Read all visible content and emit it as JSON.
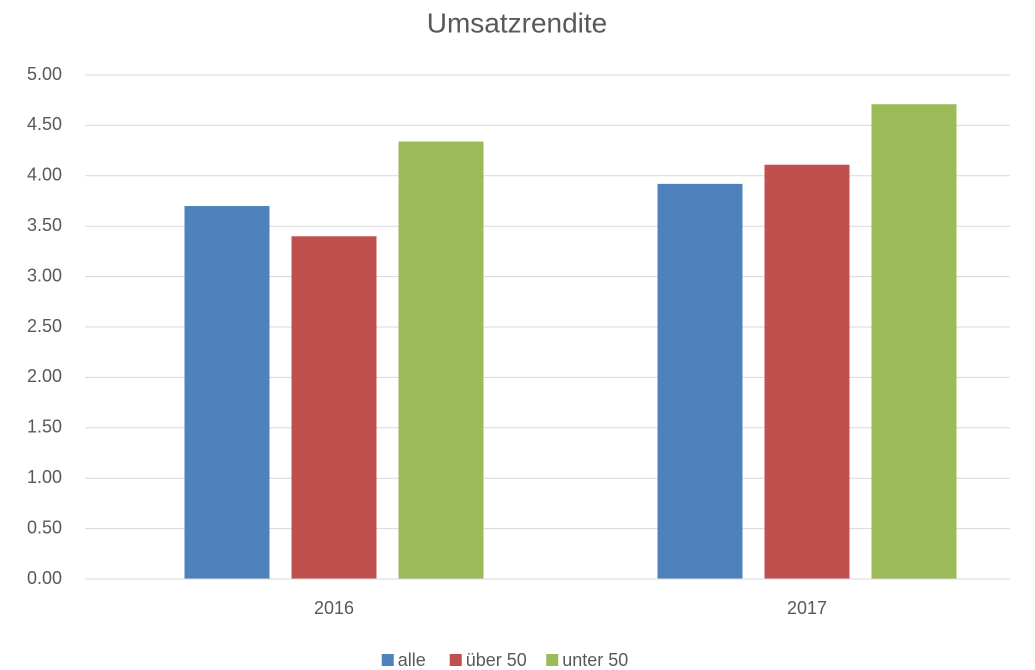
{
  "chart_data": {
    "type": "bar",
    "title": "Umsatzrendite",
    "categories": [
      "2016",
      "2017"
    ],
    "series": [
      {
        "name": "alle",
        "color": "#4f81bd",
        "values": [
          3.7,
          3.92
        ]
      },
      {
        "name": "über 50",
        "color": "#c0504d",
        "values": [
          3.4,
          4.11
        ]
      },
      {
        "name": "unter 50",
        "color": "#9bbb59",
        "values": [
          4.34,
          4.71
        ]
      }
    ],
    "ylim": [
      0,
      5
    ],
    "yticks": [
      {
        "value": 0,
        "label": "0.00"
      },
      {
        "value": 0.5,
        "label": "0.50"
      },
      {
        "value": 1,
        "label": "1.00"
      },
      {
        "value": 1.5,
        "label": "1.50"
      },
      {
        "value": 2,
        "label": "2.00"
      },
      {
        "value": 2.5,
        "label": "2.50"
      },
      {
        "value": 3,
        "label": "3.00"
      },
      {
        "value": 3.5,
        "label": "3.50"
      },
      {
        "value": 4,
        "label": "4.00"
      },
      {
        "value": 4.5,
        "label": "4.50"
      },
      {
        "value": 5,
        "label": "5.00"
      }
    ],
    "grid": true,
    "legend": "bottom"
  }
}
